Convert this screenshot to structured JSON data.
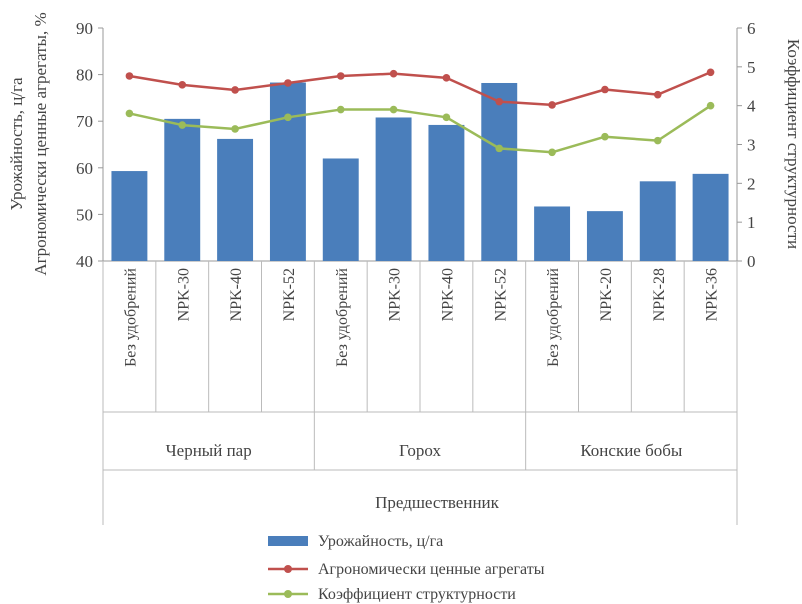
{
  "chart_data": {
    "type": "bar",
    "categories": [
      "Без удобрений",
      "NPK-30",
      "NPK-40",
      "NPK-52",
      "Без удобрений",
      "NPK-30",
      "NPK-40",
      "NPK-52",
      "Без удобрений",
      "NPK-20",
      "NPK-28",
      "NPK-36"
    ],
    "groups": [
      {
        "label": "Черный пар",
        "span": 4
      },
      {
        "label": "Горох",
        "span": 4
      },
      {
        "label": "Конские бобы",
        "span": 4
      }
    ],
    "xlabel": "Предшественник",
    "ylabel_left_line1": "Урожайность, ц/га",
    "ylabel_left_line2": "Агрономически ценные агрегаты, %",
    "ylabel_right": "Коэффициент структурности",
    "ylim_left": [
      40,
      90
    ],
    "yticks_left": [
      "40",
      "50",
      "60",
      "70",
      "80",
      "90"
    ],
    "ylim_right": [
      0,
      6
    ],
    "yticks_right": [
      "0",
      "1",
      "2",
      "3",
      "4",
      "5",
      "6"
    ],
    "series": [
      {
        "name": "Урожайность, ц/га",
        "type": "bar",
        "axis": "left",
        "color": "#4a7ebb",
        "values": [
          59.3,
          70.5,
          66.2,
          78.3,
          62.0,
          70.8,
          69.2,
          78.2,
          51.7,
          50.7,
          57.1,
          58.7
        ]
      },
      {
        "name": "Агрономически ценные агрегаты",
        "type": "line",
        "axis": "left",
        "color": "#c0504d",
        "values": [
          79.7,
          77.8,
          76.7,
          78.2,
          79.7,
          80.2,
          79.3,
          74.2,
          73.5,
          76.8,
          75.7,
          80.5
        ]
      },
      {
        "name": "Коэффициент структурности",
        "type": "line",
        "axis": "right",
        "color": "#9bbb59",
        "values": [
          3.8,
          3.5,
          3.4,
          3.7,
          3.9,
          3.9,
          3.7,
          2.9,
          2.8,
          3.2,
          3.1,
          4.0
        ]
      }
    ],
    "grid": false,
    "legend": "bottom"
  }
}
